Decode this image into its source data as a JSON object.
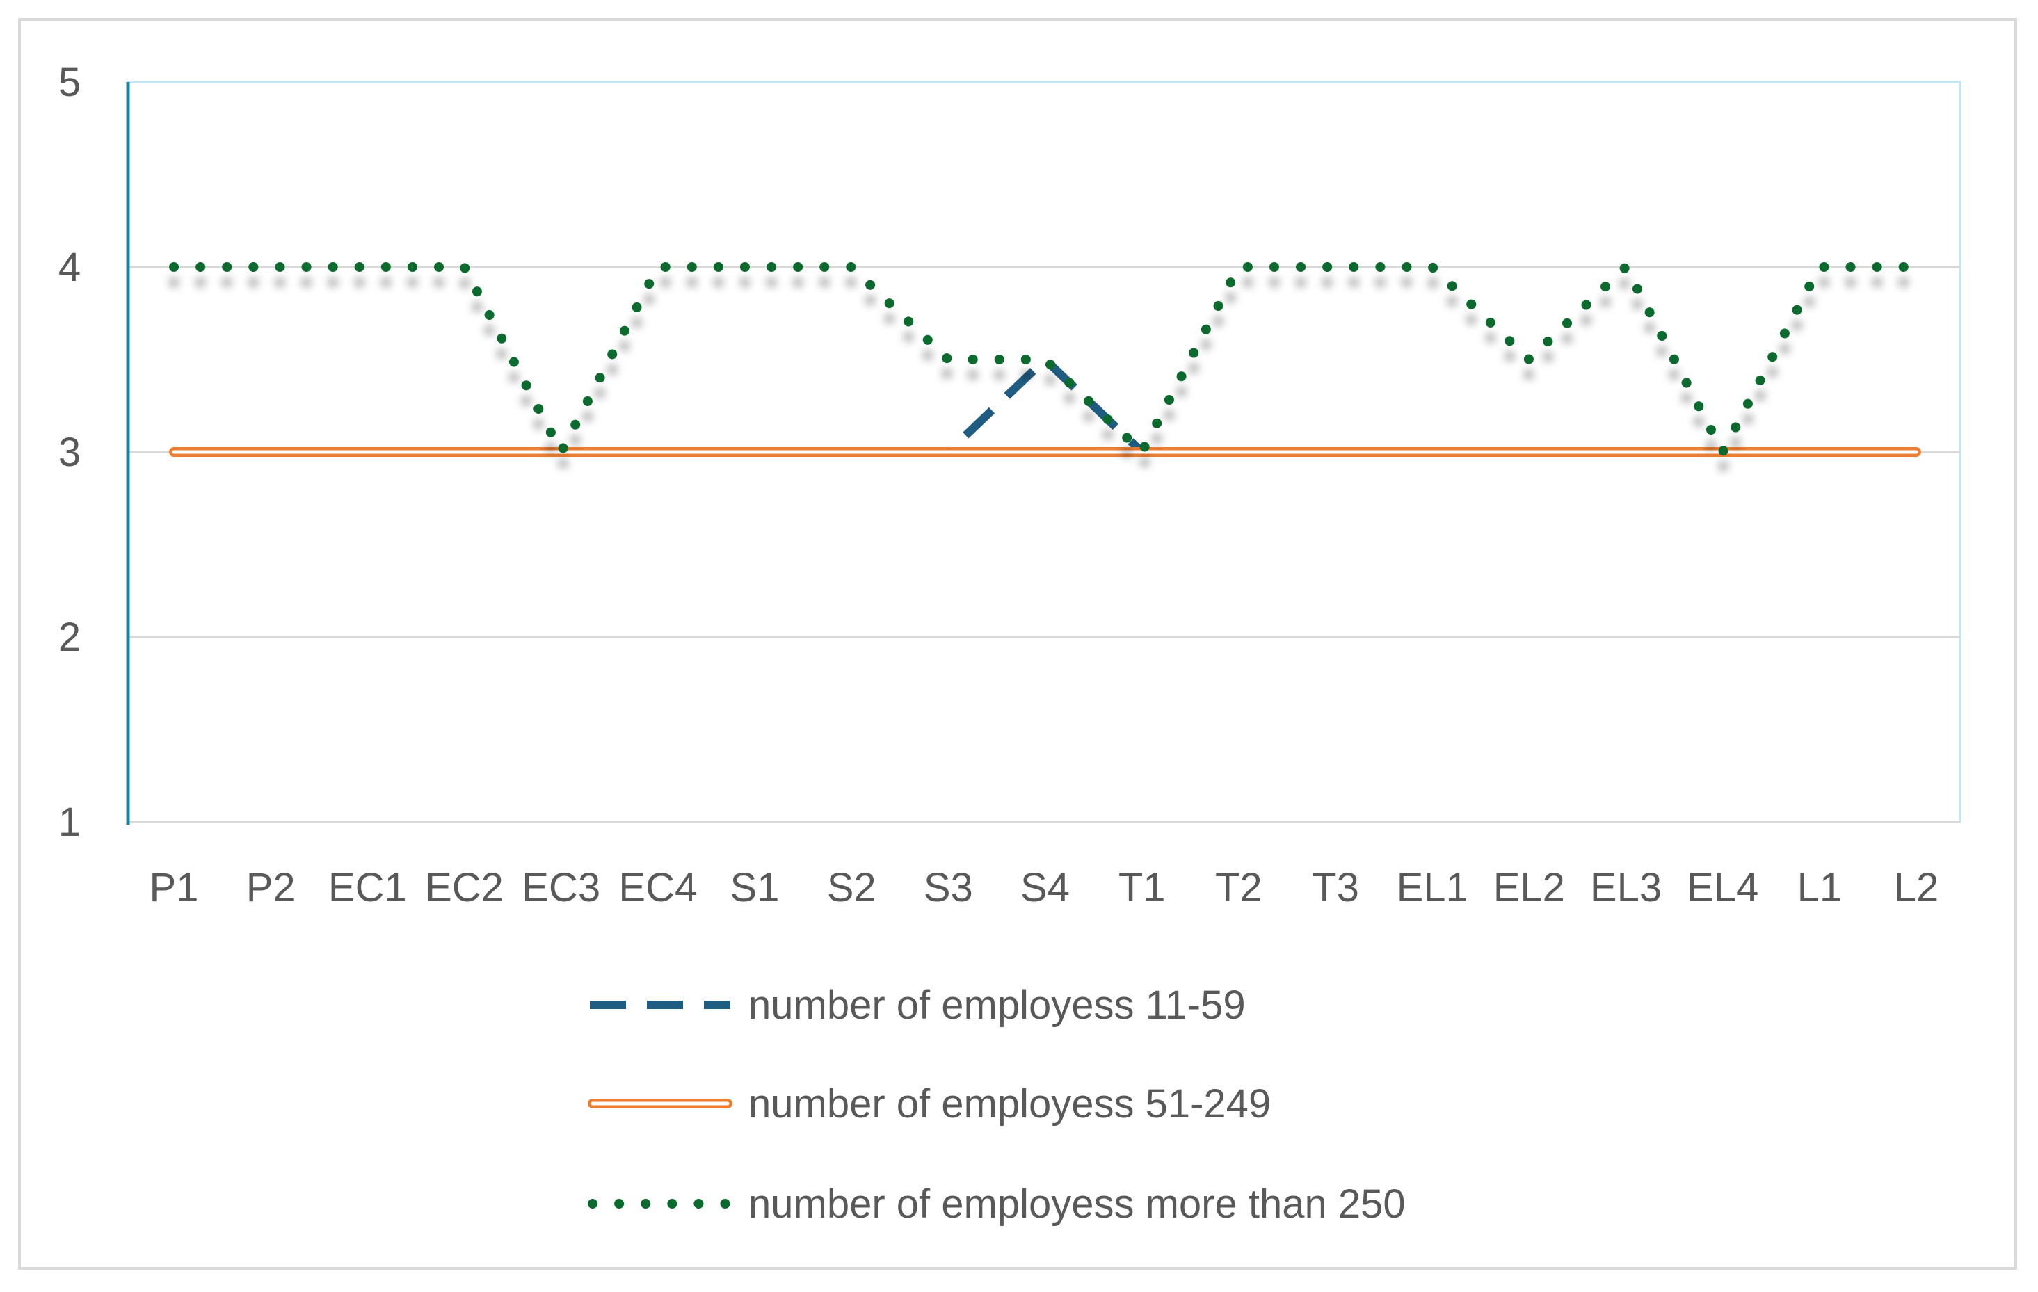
{
  "chart_data": {
    "type": "line",
    "title": "",
    "xlabel": "",
    "ylabel": "",
    "categories": [
      "P1",
      "P2",
      "EC1",
      "EC2",
      "EC3",
      "EC4",
      "S1",
      "S2",
      "S3",
      "S4",
      "T1",
      "T2",
      "T3",
      "EL1",
      "EL2",
      "EL3",
      "EL4",
      "L1",
      "L2"
    ],
    "ylim": [
      1,
      5
    ],
    "yticks": [
      1,
      2,
      3,
      4,
      5
    ],
    "grid": true,
    "legend_position": "bottom",
    "series": [
      {
        "name": "number of employess 11-59",
        "style": "dashed",
        "color": "#1f5c82",
        "values": [
          3,
          3,
          3,
          3,
          3,
          3,
          3,
          3,
          3,
          3.5,
          3,
          3,
          3,
          3,
          3,
          3,
          3,
          3,
          3
        ]
      },
      {
        "name": "number of employess 51-249",
        "style": "double-solid",
        "color": "#ed7d31",
        "values": [
          3,
          3,
          3,
          3,
          3,
          3,
          3,
          3,
          3,
          3,
          3,
          3,
          3,
          3,
          3,
          3,
          3,
          3,
          3
        ]
      },
      {
        "name": "number of employess more than 250",
        "style": "dotted",
        "color": "#0b6b2e",
        "values": [
          4,
          4,
          4,
          4,
          3,
          4,
          4,
          4,
          3.5,
          3.5,
          3,
          4,
          4,
          4,
          3.5,
          4,
          3,
          4,
          4
        ]
      }
    ]
  }
}
